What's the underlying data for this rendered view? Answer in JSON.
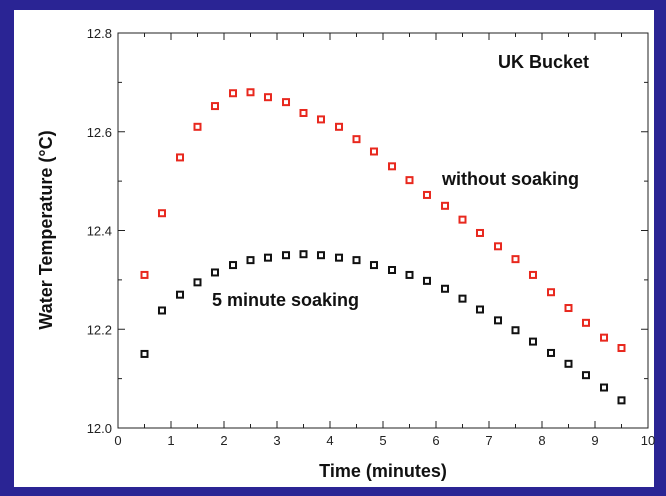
{
  "chart_data": {
    "type": "scatter",
    "title": "",
    "xlabel": "Time (minutes)",
    "ylabel": "Water Temperature (°C)",
    "xlim": [
      0,
      10
    ],
    "ylim": [
      12.0,
      12.8
    ],
    "xticks": [
      0,
      1,
      2,
      3,
      4,
      5,
      6,
      7,
      8,
      9,
      10
    ],
    "yticks": [
      12.0,
      12.2,
      12.4,
      12.6,
      12.8
    ],
    "ytick_labels": [
      "12.0",
      "12.2",
      "12.4",
      "12.6",
      "12.8"
    ],
    "grid": false,
    "annotations": [
      {
        "text": "UK Bucket"
      },
      {
        "text": "without soaking"
      },
      {
        "text": "5 minute soaking"
      }
    ],
    "series": [
      {
        "color": "#e8281e",
        "x": [
          0.5,
          0.83,
          1.17,
          1.5,
          1.83,
          2.17,
          2.5,
          2.83,
          3.17,
          3.5,
          3.83,
          4.17,
          4.5,
          4.83,
          5.17,
          5.5,
          5.83,
          6.17,
          6.5,
          6.83,
          7.17,
          7.5,
          7.83,
          8.17,
          8.5,
          8.83,
          9.17,
          9.5
        ],
        "y": [
          12.31,
          12.435,
          12.548,
          12.61,
          12.652,
          12.678,
          12.68,
          12.67,
          12.66,
          12.638,
          12.625,
          12.61,
          12.585,
          12.56,
          12.53,
          12.502,
          12.472,
          12.45,
          12.422,
          12.395,
          12.368,
          12.342,
          12.31,
          12.275,
          12.243,
          12.213,
          12.183,
          12.162
        ]
      },
      {
        "color": "#111111",
        "x": [
          0.5,
          0.83,
          1.17,
          1.5,
          1.83,
          2.17,
          2.5,
          2.83,
          3.17,
          3.5,
          3.83,
          4.17,
          4.5,
          4.83,
          5.17,
          5.5,
          5.83,
          6.17,
          6.5,
          6.83,
          7.17,
          7.5,
          7.83,
          8.17,
          8.5,
          8.83,
          9.17,
          9.5
        ],
        "y": [
          12.15,
          12.238,
          12.27,
          12.295,
          12.315,
          12.33,
          12.34,
          12.345,
          12.35,
          12.352,
          12.35,
          12.345,
          12.34,
          12.33,
          12.32,
          12.31,
          12.298,
          12.282,
          12.262,
          12.24,
          12.218,
          12.198,
          12.175,
          12.152,
          12.13,
          12.107,
          12.082,
          12.056
        ]
      }
    ]
  }
}
